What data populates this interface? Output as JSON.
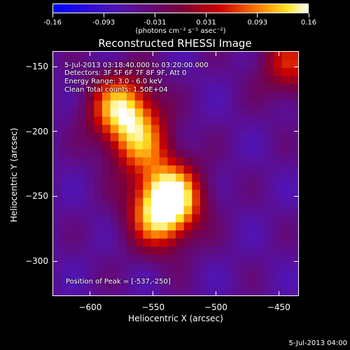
{
  "colorbar": {
    "ticks": [
      "-0.16",
      "-0.093",
      "-0.031",
      "0.031",
      "0.093",
      "0.16"
    ],
    "units": "(photons cm⁻² s⁻¹ asec⁻²)"
  },
  "annotations": {
    "time_range": "5-Jul-2013 03:18:40.000 to 03:20:00.000",
    "detectors": "Detectors: 3F 5F 6F 7F 8F 9F, Att 0",
    "energy": "Energy Range: 3.0 - 6.0 keV",
    "clean": "Clean     Total counts: 1.50E+04",
    "peak": "Position of Peak = [-537,-250]"
  },
  "footer": "5-Jul-2013 04:00",
  "chart_data": {
    "type": "heatmap",
    "title": "Reconstructed RHESSI Image",
    "xlabel": "Heliocentric X (arcsec)",
    "ylabel": "Heliocentric Y (arcsec)",
    "xlim": [
      -630,
      -434
    ],
    "ylim": [
      -327,
      -138
    ],
    "xticks": [
      -600,
      -550,
      -500,
      -450
    ],
    "yticks": [
      -150,
      -200,
      -250,
      -300
    ],
    "xtick_labels": [
      "−600",
      "−550",
      "−500",
      "−450"
    ],
    "ytick_labels": [
      "−150",
      "−200",
      "−250",
      "−300"
    ],
    "colorbar_range": [
      -0.16,
      0.16
    ],
    "sources": [
      {
        "x": -537,
        "y": -250,
        "value": 0.16
      },
      {
        "x": -575,
        "y": -182,
        "value": 0.13
      },
      {
        "x": -560,
        "y": -210,
        "value": 0.07
      },
      {
        "x": -545,
        "y": -270,
        "value": 0.06
      },
      {
        "x": -440,
        "y": -148,
        "value": 0.05
      }
    ],
    "peak": [
      -537,
      -250
    ]
  }
}
